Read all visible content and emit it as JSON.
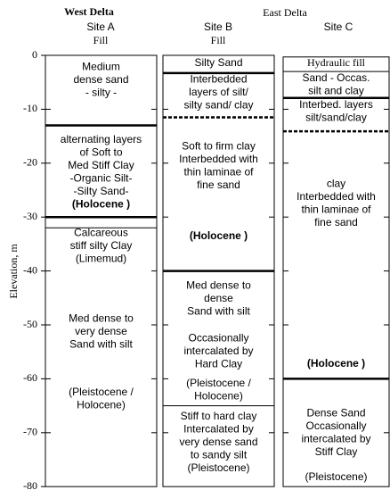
{
  "axis": {
    "label": "Elevation, m",
    "ticks": [
      0,
      -10,
      -20,
      -30,
      -40,
      -50,
      -60,
      -70,
      -80
    ]
  },
  "headers": {
    "west": "West Delta",
    "east": "East Delta"
  },
  "columns": [
    {
      "site": "Site A",
      "note": "Fill",
      "top": 0,
      "bottom": -80,
      "boundaries": [
        {
          "elev": -13,
          "style": "thick"
        },
        {
          "elev": -30,
          "style": "thick"
        },
        {
          "elev": -32,
          "style": "thin"
        }
      ],
      "blocks": [
        {
          "lines": [
            {
              "text": "Medium"
            },
            {
              "text": "dense sand"
            },
            {
              "text": "- silty -"
            }
          ]
        },
        {
          "lines": [
            {
              "text": "alternating layers"
            },
            {
              "text": "of Soft to"
            },
            {
              "text": "Med Stiff Clay"
            },
            {
              "text": "-Organic Silt-"
            },
            {
              "text": "-Silty Sand-"
            },
            {
              "text": "(Holocene )",
              "bold": true
            }
          ]
        },
        {
          "lines": [
            {
              "text": "Calcareous"
            },
            {
              "text": "stiff silty Clay"
            },
            {
              "text": "(Limemud)"
            }
          ]
        },
        {
          "lines": [
            {
              "text": "Med dense to"
            },
            {
              "text": "very dense"
            },
            {
              "text": "Sand with silt"
            }
          ]
        },
        {
          "lines": [
            {
              "text": "(Pleistocene /"
            },
            {
              "text": "Holocene)"
            }
          ]
        }
      ]
    },
    {
      "site": "Site B",
      "note": "Fill",
      "top": 0,
      "bottom": -80,
      "boundaries": [
        {
          "elev": -3.3,
          "style": "thick"
        },
        {
          "elev": -11.5,
          "style": "dashed"
        },
        {
          "elev": -40,
          "style": "thick"
        },
        {
          "elev": -65,
          "style": "thin"
        }
      ],
      "blocks": [
        {
          "lines": [
            {
              "text": "Silty Sand"
            }
          ]
        },
        {
          "lines": [
            {
              "text": "Interbedded"
            },
            {
              "text": "layers of silt/"
            },
            {
              "text": "silty sand/ clay"
            }
          ]
        },
        {
          "lines": [
            {
              "text": "Soft to firm clay"
            },
            {
              "text": "Interbedded with"
            },
            {
              "text": "thin laminae of"
            },
            {
              "text": "fine sand"
            }
          ]
        },
        {
          "lines": [
            {
              "text": "(Holocene )",
              "bold": true
            }
          ]
        },
        {
          "lines": [
            {
              "text": "Med dense to"
            },
            {
              "text": "dense"
            },
            {
              "text": "Sand with silt"
            }
          ]
        },
        {
          "lines": [
            {
              "text": "Occasionally"
            },
            {
              "text": "intercalated by"
            },
            {
              "text": "Hard Clay"
            }
          ]
        },
        {
          "lines": [
            {
              "text": "(Pleistocene /"
            },
            {
              "text": "Holocene)"
            }
          ]
        },
        {
          "lines": [
            {
              "text": "Stiff to hard clay"
            },
            {
              "text": "Intercalated by"
            },
            {
              "text": "very dense sand"
            },
            {
              "text": "to sandy silt"
            },
            {
              "text": "(Pleistocene)"
            }
          ]
        }
      ]
    },
    {
      "site": "Site C",
      "top": -0.3,
      "bottom": -80,
      "boundaries": [
        {
          "elev": -3,
          "style": "thin"
        },
        {
          "elev": -7.9,
          "style": "thick"
        },
        {
          "elev": -14.1,
          "style": "dashed"
        },
        {
          "elev": -60,
          "style": "thick"
        }
      ],
      "blocks": [
        {
          "lines": [
            {
              "text": "Hydraulic fill",
              "serif": true
            }
          ]
        },
        {
          "lines": [
            {
              "text": "Sand - Occas."
            },
            {
              "text": "silt and clay"
            }
          ]
        },
        {
          "lines": [
            {
              "text": "Interbed. layers"
            },
            {
              "text": "silt/sand/clay"
            }
          ]
        },
        {
          "lines": [
            {
              "text": "clay"
            },
            {
              "text": "Interbedded with"
            },
            {
              "text": "thin laminae of"
            },
            {
              "text": "fine sand"
            }
          ]
        },
        {
          "lines": [
            {
              "text": "(Holocene )",
              "bold": true
            }
          ]
        },
        {
          "lines": [
            {
              "text": "Dense Sand"
            },
            {
              "text": "Occasionally"
            },
            {
              "text": "intercalated by"
            },
            {
              "text": "Stiff Clay"
            }
          ]
        },
        {
          "lines": [
            {
              "text": "(Pleistocene)"
            }
          ]
        }
      ]
    }
  ]
}
